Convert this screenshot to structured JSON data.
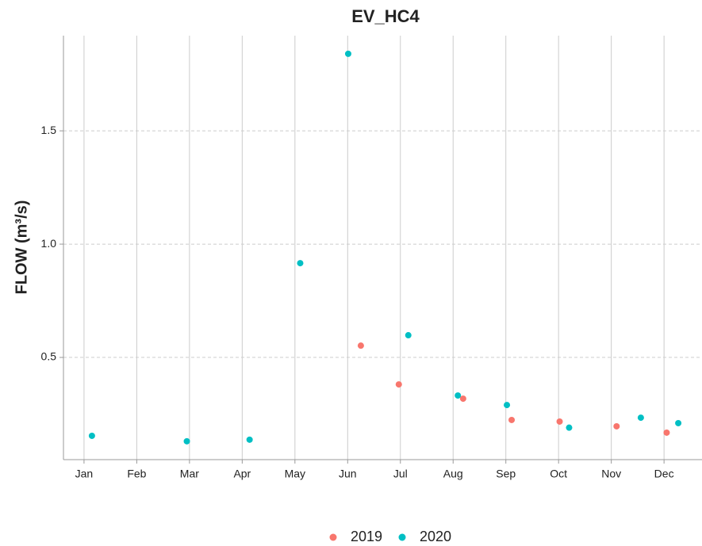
{
  "chart_data": {
    "type": "scatter",
    "title": "EV_HC4",
    "y_label": "FLOW (m³/s)",
    "xlim": [
      0.61,
      12.72
    ],
    "xticks": [
      {
        "value": 1,
        "label": "Jan"
      },
      {
        "value": 2,
        "label": "Feb"
      },
      {
        "value": 3,
        "label": "Mar"
      },
      {
        "value": 4,
        "label": "Apr"
      },
      {
        "value": 5,
        "label": "May"
      },
      {
        "value": 6,
        "label": "Jun"
      },
      {
        "value": 7,
        "label": "Jul"
      },
      {
        "value": 8,
        "label": "Aug"
      },
      {
        "value": 9,
        "label": "Sep"
      },
      {
        "value": 10,
        "label": "Oct"
      },
      {
        "value": 11,
        "label": "Nov"
      },
      {
        "value": 12,
        "label": "Dec"
      }
    ],
    "ylim": [
      0.049,
      1.92
    ],
    "yticks": [
      0.5,
      {
        "value": 1.0,
        "label": "1.0"
      },
      1.5
    ],
    "grid": true,
    "legend": "bottom",
    "series": [
      {
        "name": "2019",
        "color": "#f8766d",
        "x": [
          6.25,
          6.97,
          8.19,
          9.11,
          10.02,
          11.1,
          12.05
        ],
        "values": [
          0.552,
          0.381,
          0.318,
          0.224,
          0.217,
          0.196,
          0.168
        ]
      },
      {
        "name": "2020",
        "color": "#00bfc4",
        "x": [
          1.15,
          2.95,
          4.14,
          5.1,
          6.01,
          7.15,
          8.09,
          9.02,
          10.2,
          11.56,
          12.27
        ],
        "values": [
          0.154,
          0.13,
          0.137,
          0.916,
          1.84,
          0.598,
          0.332,
          0.29,
          0.19,
          0.234,
          0.21
        ]
      }
    ]
  }
}
